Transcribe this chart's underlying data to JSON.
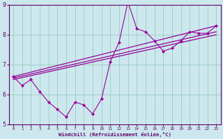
{
  "xlabel": "Windchill (Refroidissement éolien,°C)",
  "background_color": "#cce8ee",
  "grid_color": "#99ccbb",
  "line_color": "#990099",
  "spine_color": "#660066",
  "xlim": [
    -0.5,
    23.5
  ],
  "ylim": [
    5,
    9
  ],
  "yticks": [
    5,
    6,
    7,
    8,
    9
  ],
  "xticks": [
    0,
    1,
    2,
    3,
    4,
    5,
    6,
    7,
    8,
    9,
    10,
    11,
    12,
    13,
    14,
    15,
    16,
    17,
    18,
    19,
    20,
    21,
    22,
    23
  ],
  "main_x": [
    0,
    1,
    2,
    3,
    4,
    5,
    6,
    7,
    8,
    9,
    10,
    11,
    12,
    13,
    14,
    15,
    16,
    17,
    18,
    19,
    20,
    21,
    22,
    23
  ],
  "main_y": [
    6.6,
    6.3,
    6.5,
    6.1,
    5.75,
    5.5,
    5.25,
    5.75,
    5.65,
    5.35,
    5.85,
    7.1,
    7.75,
    9.1,
    8.2,
    8.1,
    7.8,
    7.45,
    7.55,
    7.8,
    8.1,
    8.05,
    8.05,
    8.3
  ],
  "line1_x": [
    0,
    23
  ],
  "line1_y": [
    6.6,
    8.3
  ],
  "line2_x": [
    0,
    23
  ],
  "line2_y": [
    6.55,
    8.1
  ],
  "line3_x": [
    0,
    23
  ],
  "line3_y": [
    6.5,
    8.0
  ]
}
